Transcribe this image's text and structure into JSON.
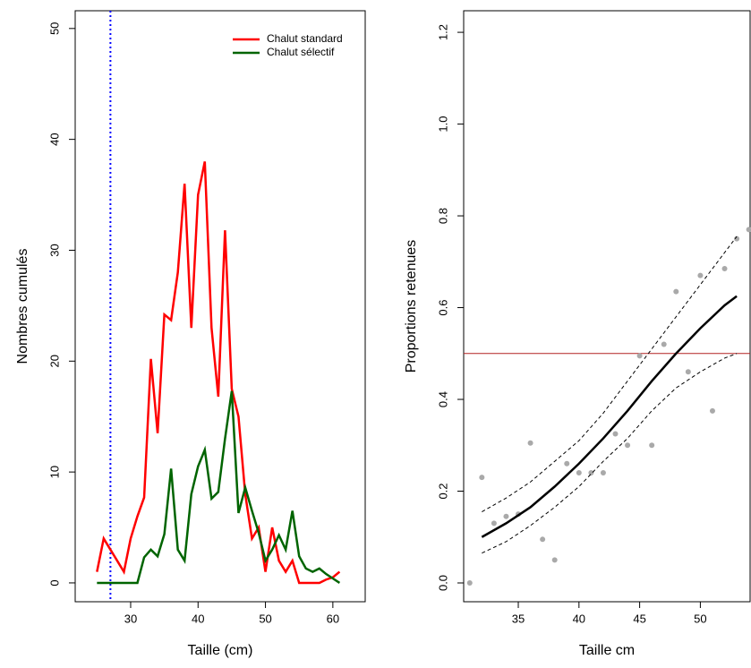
{
  "chart_data": [
    {
      "type": "line",
      "x_label": "Taille (cm)",
      "y_label": "Nombres cumulés",
      "xlim": [
        21.77,
        64.8
      ],
      "ylim": [
        -1.7,
        51.6
      ],
      "xticks": [
        30,
        40,
        50,
        60
      ],
      "yticks": [
        0,
        10,
        20,
        30,
        40,
        50
      ],
      "vlines": [
        {
          "value": 27,
          "color": "#0000ff",
          "dash": "2,3"
        }
      ],
      "legend": "top-right",
      "x": [
        25,
        26,
        27,
        28,
        29,
        30,
        31,
        32,
        33,
        34,
        35,
        36,
        37,
        38,
        39,
        40,
        41,
        42,
        43,
        44,
        45,
        46,
        47,
        48,
        49,
        50,
        51,
        52,
        53,
        54,
        55,
        56,
        57,
        58,
        59,
        60,
        61
      ],
      "series": [
        {
          "name": "Chalut standard",
          "color": "#ff0000",
          "width": 2.5,
          "values": [
            1,
            4,
            3,
            2,
            1,
            4,
            6,
            7.7,
            20.2,
            13.5,
            24.2,
            23.7,
            28,
            36,
            23,
            35,
            38,
            23,
            16.8,
            31.8,
            17.5,
            15,
            8,
            4,
            5,
            1,
            5,
            2,
            1,
            2,
            0,
            0,
            0,
            0,
            0.3,
            0.5,
            1
          ]
        },
        {
          "name": "Chalut sélectif",
          "color": "#006400",
          "width": 2.5,
          "values": [
            0,
            0,
            0,
            0,
            0,
            0,
            0,
            2.3,
            3,
            2.4,
            4.4,
            10.3,
            3,
            2,
            8,
            10.5,
            12,
            7.6,
            8.2,
            13,
            17.3,
            6.3,
            8.6,
            6.5,
            4.5,
            2,
            3,
            4.3,
            3,
            6.5,
            2.4,
            1.3,
            1,
            1.3,
            0.8,
            0.4,
            0
          ]
        }
      ]
    },
    {
      "type": "scatter",
      "x_label": "Taille cm",
      "y_label": "Proportions retenues",
      "xlim": [
        30.5,
        54.1
      ],
      "ylim": [
        -0.041,
        1.247
      ],
      "xticks": [
        35,
        40,
        45,
        50
      ],
      "yticks": [
        {
          "value": 0,
          "label": "0.0"
        },
        0.2,
        0.4,
        0.6,
        0.8,
        {
          "value": 1,
          "label": "1.0"
        },
        1.2
      ],
      "hlines": [
        {
          "value": 0.5,
          "color": "#b22222",
          "dash": ""
        }
      ],
      "series": [
        {
          "style": "points",
          "color": "#a9a9a9",
          "x": [
            31,
            32,
            33,
            34,
            35,
            36,
            37,
            38,
            39,
            40,
            41,
            42,
            43,
            44,
            45,
            46,
            47,
            48,
            49,
            50,
            51,
            52,
            53,
            54
          ],
          "values": [
            0,
            0.23,
            0.13,
            0.145,
            0.15,
            0.305,
            0.095,
            0.05,
            0.26,
            0.24,
            0.24,
            0.24,
            0.325,
            0.3,
            0.495,
            0.3,
            0.52,
            0.635,
            0.46,
            0.67,
            0.375,
            0.685,
            0.75,
            0.77
          ]
        },
        {
          "style": "line",
          "color": "#000000",
          "width": 2.5,
          "x": [
            32,
            34,
            36,
            38,
            40,
            42,
            44,
            46,
            48,
            50,
            52,
            53
          ],
          "values": [
            0.1,
            0.13,
            0.165,
            0.21,
            0.26,
            0.315,
            0.375,
            0.44,
            0.5,
            0.555,
            0.605,
            0.625
          ]
        },
        {
          "style": "line",
          "color": "#000000",
          "width": 1,
          "dash": "4,3",
          "x": [
            32,
            34,
            36,
            38,
            40,
            42,
            44,
            46,
            48,
            50,
            52,
            53
          ],
          "values": [
            0.155,
            0.185,
            0.22,
            0.265,
            0.31,
            0.37,
            0.44,
            0.51,
            0.58,
            0.65,
            0.72,
            0.755
          ]
        },
        {
          "style": "line",
          "color": "#000000",
          "width": 1,
          "dash": "4,3",
          "x": [
            32,
            34,
            36,
            38,
            40,
            42,
            44,
            46,
            48,
            50,
            52,
            53
          ],
          "values": [
            0.065,
            0.09,
            0.125,
            0.165,
            0.21,
            0.265,
            0.315,
            0.375,
            0.425,
            0.46,
            0.49,
            0.5
          ]
        }
      ]
    }
  ]
}
